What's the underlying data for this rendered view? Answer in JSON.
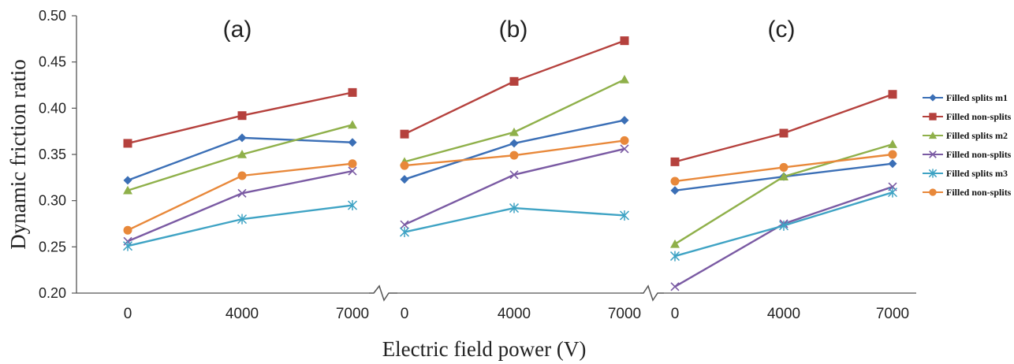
{
  "chart_data": {
    "type": "line",
    "xlabel": "Electric field power (V)",
    "ylabel": "Dynamic friction ratio",
    "ylim": [
      0.2,
      0.5
    ],
    "yticks": [
      "0.20",
      "0.25",
      "0.30",
      "0.35",
      "0.40",
      "0.45",
      "0.50"
    ],
    "x": [
      "0",
      "4000",
      "7000"
    ],
    "legend_position": "right",
    "series_meta": [
      {
        "name": "Filled splits m1",
        "color": "#3b6fb6",
        "marker": "diamond"
      },
      {
        "name": "Filled non-splits",
        "color": "#b5413d",
        "marker": "square"
      },
      {
        "name": "Filled splits m2",
        "color": "#8fb04a",
        "marker": "triangle"
      },
      {
        "name": "Filled non-splits",
        "color": "#7a5aa3",
        "marker": "x"
      },
      {
        "name": "Filled splits m3",
        "color": "#3fa3c4",
        "marker": "star"
      },
      {
        "name": "Filled non-splits",
        "color": "#e8883a",
        "marker": "circle"
      }
    ],
    "panels": [
      {
        "title": "(a)",
        "series": [
          [
            0.322,
            0.368,
            0.363
          ],
          [
            0.362,
            0.392,
            0.417
          ],
          [
            0.311,
            0.35,
            0.382
          ],
          [
            0.256,
            0.308,
            0.332
          ],
          [
            0.251,
            0.28,
            0.295
          ],
          [
            0.268,
            0.327,
            0.34
          ]
        ]
      },
      {
        "title": "(b)",
        "series": [
          [
            0.323,
            0.362,
            0.387
          ],
          [
            0.372,
            0.429,
            0.473
          ],
          [
            0.342,
            0.374,
            0.431
          ],
          [
            0.274,
            0.328,
            0.356
          ],
          [
            0.266,
            0.292,
            0.284
          ],
          [
            0.338,
            0.349,
            0.365
          ]
        ]
      },
      {
        "title": "(c)",
        "series": [
          [
            0.311,
            0.326,
            0.34
          ],
          [
            0.342,
            0.373,
            0.415
          ],
          [
            0.253,
            0.326,
            0.361
          ],
          [
            0.207,
            0.275,
            0.315
          ],
          [
            0.24,
            0.273,
            0.309
          ],
          [
            0.321,
            0.336,
            0.35
          ]
        ]
      }
    ]
  }
}
